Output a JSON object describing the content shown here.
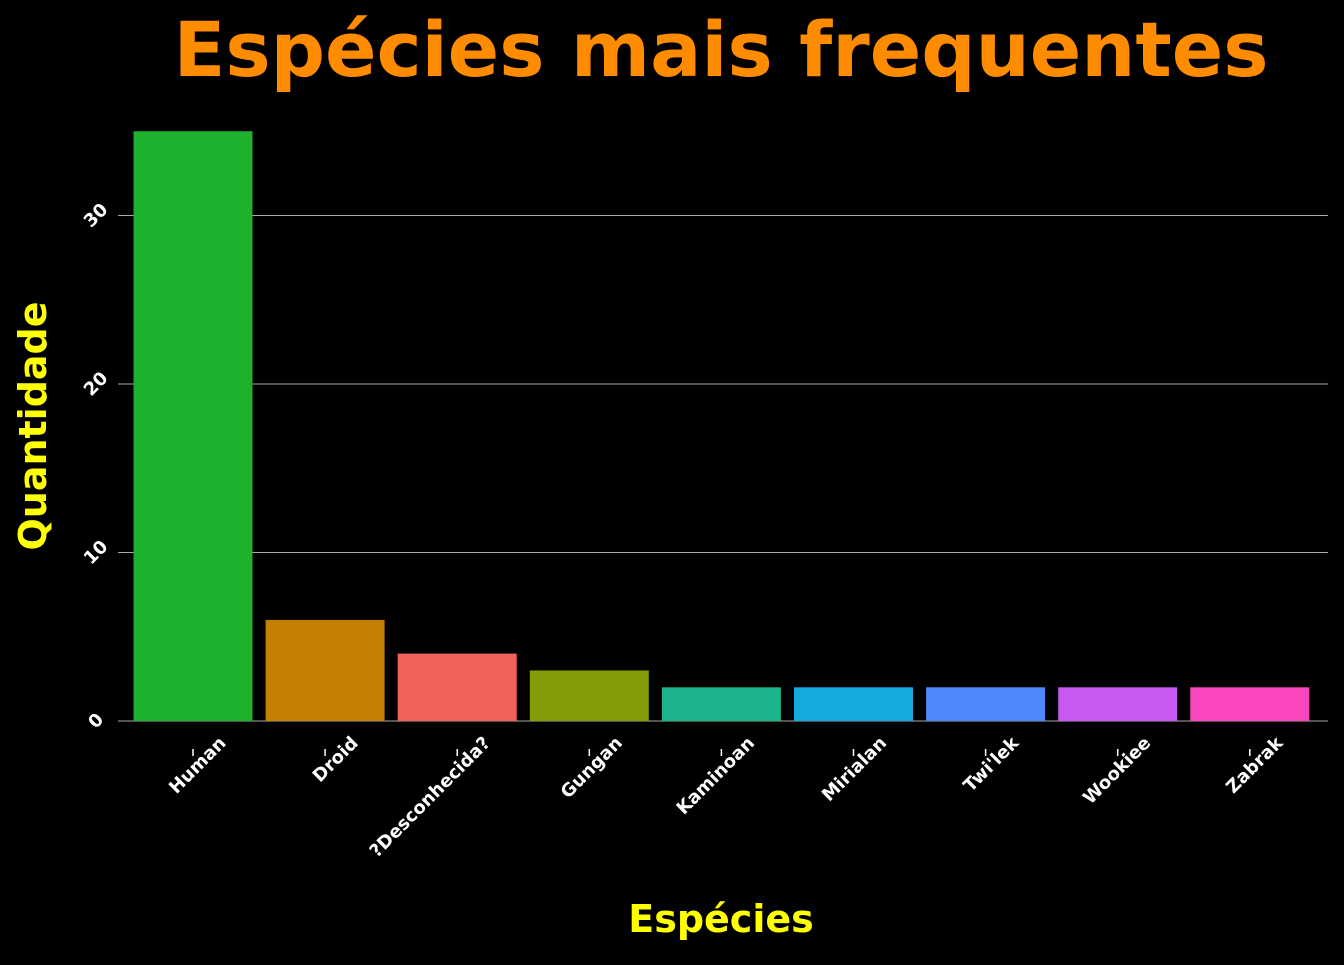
{
  "chart_data": {
    "type": "bar",
    "title": "Espécies mais frequentes",
    "xlabel": "Espécies",
    "ylabel": "Quantidade",
    "categories": [
      "Human",
      "Droid",
      "?Desconhecida?",
      "Gungan",
      "Kaminoan",
      "Mirialan",
      "Twi'lek",
      "Wookiee",
      "Zabrak"
    ],
    "values": [
      35,
      6,
      4,
      3,
      2,
      2,
      2,
      2,
      2
    ],
    "colors": [
      "#1DB12E",
      "#C57F03",
      "#F2615B",
      "#849C06",
      "#1BB38B",
      "#16A9DB",
      "#4E88FC",
      "#C858F2",
      "#FA45BD"
    ],
    "ylim": [
      0,
      36
    ],
    "yticks": [
      0,
      10,
      20,
      30
    ],
    "ytick_labels": [
      "0",
      "10",
      "20",
      "30"
    ],
    "grid": "horizontal",
    "legend": "none",
    "title_color": "#FF8C00",
    "axis_label_color": "#FFFF00",
    "tick_label_color": "#FFFFFF",
    "background": "#000000",
    "grid_color": "#A9A9A9"
  }
}
